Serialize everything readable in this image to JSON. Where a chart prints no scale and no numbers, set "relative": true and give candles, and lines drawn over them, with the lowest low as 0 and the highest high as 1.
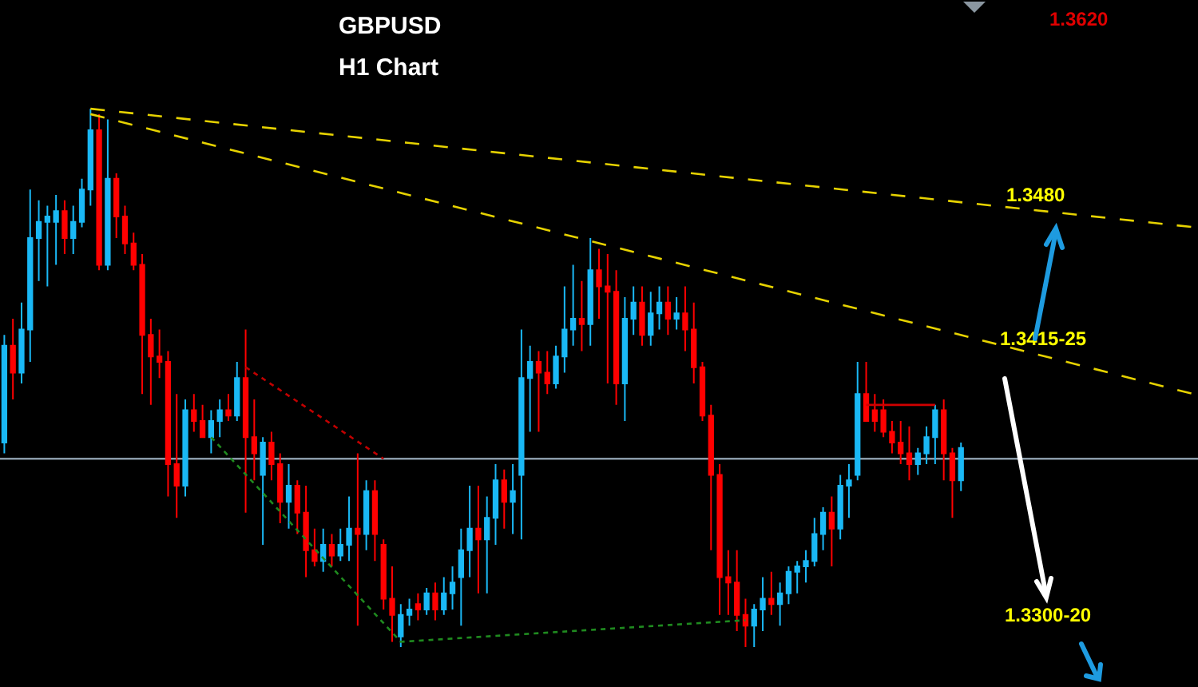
{
  "chart_data": {
    "type": "candlestick",
    "relative": true,
    "title": "GBPUSD",
    "subtitle": "H1 Chart",
    "categories": [
      null,
      null,
      null,
      null,
      null,
      null,
      null,
      null,
      null,
      null,
      null,
      null,
      null,
      null,
      null,
      null,
      null,
      null,
      null,
      null,
      null,
      null,
      null,
      null,
      null,
      null,
      null,
      null,
      null,
      null,
      null,
      null,
      null,
      null,
      null,
      null,
      null,
      null,
      null,
      null,
      null,
      null,
      null,
      null,
      null,
      null,
      null,
      null,
      null,
      null,
      null,
      null,
      null,
      null,
      null,
      null,
      null,
      null,
      null,
      null,
      null,
      null,
      null,
      null,
      null,
      null,
      null,
      null,
      null,
      null,
      null,
      null,
      null,
      null,
      null,
      null,
      null,
      null,
      null,
      null,
      null,
      null,
      null,
      null,
      null,
      null,
      null,
      null,
      null,
      null,
      null,
      null,
      null,
      null,
      null,
      null,
      null,
      null,
      null,
      null,
      null,
      null,
      null,
      null,
      null,
      null,
      null,
      null,
      null,
      null,
      null,
      null,
      null,
      null,
      null,
      null,
      null,
      null,
      null,
      null,
      null,
      null,
      null,
      null,
      null,
      null,
      null,
      null,
      null,
      null,
      null,
      null,
      null,
      null,
      null,
      null,
      null,
      null,
      null
    ],
    "ohlc": [
      [
        0.38,
        0.58,
        0.36,
        0.56
      ],
      [
        0.56,
        0.61,
        0.46,
        0.51
      ],
      [
        0.51,
        0.64,
        0.49,
        0.59
      ],
      [
        0.59,
        0.85,
        0.53,
        0.76
      ],
      [
        0.76,
        0.83,
        0.68,
        0.79
      ],
      [
        0.79,
        0.82,
        0.67,
        0.8
      ],
      [
        0.79,
        0.84,
        0.71,
        0.81
      ],
      [
        0.81,
        0.83,
        0.73,
        0.76
      ],
      [
        0.76,
        0.82,
        0.73,
        0.79
      ],
      [
        0.79,
        0.87,
        0.78,
        0.85
      ],
      [
        0.85,
        1,
        0.82,
        0.96
      ],
      [
        0.96,
        0.99,
        0.7,
        0.71
      ],
      [
        0.71,
        0.98,
        0.7,
        0.87
      ],
      [
        0.87,
        0.88,
        0.76,
        0.8
      ],
      [
        0.8,
        0.82,
        0.73,
        0.75
      ],
      [
        0.75,
        0.77,
        0.7,
        0.71
      ],
      [
        0.71,
        0.73,
        0.47,
        0.58
      ],
      [
        0.58,
        0.61,
        0.45,
        0.54
      ],
      [
        0.54,
        0.59,
        0.5,
        0.53
      ],
      [
        0.53,
        0.55,
        0.28,
        0.34
      ],
      [
        0.34,
        0.47,
        0.24,
        0.3
      ],
      [
        0.3,
        0.46,
        0.28,
        0.44
      ],
      [
        0.44,
        0.47,
        0.4,
        0.42
      ],
      [
        0.42,
        0.45,
        0.39,
        0.39
      ],
      [
        0.39,
        0.44,
        0.36,
        0.42
      ],
      [
        0.42,
        0.46,
        0.39,
        0.44
      ],
      [
        0.44,
        0.47,
        0.42,
        0.43
      ],
      [
        0.43,
        0.53,
        0.42,
        0.5
      ],
      [
        0.5,
        0.59,
        0.25,
        0.39
      ],
      [
        0.39,
        0.46,
        0.31,
        0.36
      ],
      [
        0.32,
        0.39,
        0.19,
        0.38
      ],
      [
        0.38,
        0.4,
        0.31,
        0.34
      ],
      [
        0.34,
        0.36,
        0.23,
        0.27
      ],
      [
        0.27,
        0.34,
        0.22,
        0.3
      ],
      [
        0.3,
        0.31,
        0.21,
        0.25
      ],
      [
        0.25,
        0.3,
        0.13,
        0.18
      ],
      [
        0.18,
        0.22,
        0.15,
        0.16
      ],
      [
        0.16,
        0.22,
        0.14,
        0.19
      ],
      [
        0.19,
        0.21,
        0.15,
        0.17
      ],
      [
        0.17,
        0.22,
        0.16,
        0.19
      ],
      [
        0.19,
        0.28,
        0.16,
        0.22
      ],
      [
        0.22,
        0.36,
        0.04,
        0.21
      ],
      [
        0.21,
        0.31,
        0.18,
        0.29
      ],
      [
        0.29,
        0.31,
        0.16,
        0.21
      ],
      [
        0.19,
        0.2,
        0.07,
        0.09
      ],
      [
        0.09,
        0.15,
        0.01,
        0.06
      ],
      [
        0.02,
        0.08,
        0.0,
        0.06
      ],
      [
        0.06,
        0.09,
        0.04,
        0.07
      ],
      [
        0.08,
        0.1,
        0.05,
        0.07
      ],
      [
        0.07,
        0.11,
        0.06,
        0.1
      ],
      [
        0.1,
        0.12,
        0.05,
        0.07
      ],
      [
        0.07,
        0.13,
        0.06,
        0.1
      ],
      [
        0.1,
        0.15,
        0.07,
        0.12
      ],
      [
        0.13,
        0.22,
        0.04,
        0.18
      ],
      [
        0.18,
        0.3,
        0.13,
        0.22
      ],
      [
        0.22,
        0.3,
        0.1,
        0.2
      ],
      [
        0.2,
        0.28,
        0.1,
        0.24
      ],
      [
        0.24,
        0.34,
        0.19,
        0.31
      ],
      [
        0.31,
        0.33,
        0.22,
        0.27
      ],
      [
        0.27,
        0.34,
        0.21,
        0.29
      ],
      [
        0.32,
        0.59,
        0.2,
        0.5
      ],
      [
        0.5,
        0.56,
        0.4,
        0.53
      ],
      [
        0.53,
        0.55,
        0.4,
        0.51
      ],
      [
        0.51,
        0.55,
        0.47,
        0.49
      ],
      [
        0.49,
        0.56,
        0.48,
        0.54
      ],
      [
        0.54,
        0.67,
        0.51,
        0.59
      ],
      [
        0.59,
        0.71,
        0.56,
        0.61
      ],
      [
        0.61,
        0.68,
        0.55,
        0.6
      ],
      [
        0.6,
        0.76,
        0.56,
        0.7
      ],
      [
        0.7,
        0.74,
        0.61,
        0.67
      ],
      [
        0.67,
        0.73,
        0.49,
        0.66
      ],
      [
        0.66,
        0.7,
        0.45,
        0.49
      ],
      [
        0.49,
        0.65,
        0.42,
        0.61
      ],
      [
        0.61,
        0.67,
        0.58,
        0.64
      ],
      [
        0.64,
        0.67,
        0.56,
        0.58
      ],
      [
        0.58,
        0.66,
        0.56,
        0.62
      ],
      [
        0.62,
        0.67,
        0.59,
        0.64
      ],
      [
        0.64,
        0.67,
        0.58,
        0.61
      ],
      [
        0.61,
        0.65,
        0.59,
        0.62
      ],
      [
        0.62,
        0.67,
        0.55,
        0.59
      ],
      [
        0.59,
        0.64,
        0.49,
        0.52
      ],
      [
        0.52,
        0.53,
        0.42,
        0.43
      ],
      [
        0.43,
        0.45,
        0.18,
        0.32
      ],
      [
        0.32,
        0.34,
        0.06,
        0.13
      ],
      [
        0.13,
        0.18,
        0.06,
        0.12
      ],
      [
        0.12,
        0.18,
        0.03,
        0.06
      ],
      [
        0.06,
        0.09,
        0.0,
        0.04
      ],
      [
        0.04,
        0.08,
        0,
        0.07
      ],
      [
        0.07,
        0.13,
        0.03,
        0.09
      ],
      [
        0.09,
        0.14,
        0.06,
        0.08
      ],
      [
        0.08,
        0.12,
        0.04,
        0.1
      ],
      [
        0.1,
        0.15,
        0.08,
        0.14
      ],
      [
        0.14,
        0.16,
        0.1,
        0.15
      ],
      [
        0.15,
        0.18,
        0.12,
        0.16
      ],
      [
        0.16,
        0.24,
        0.15,
        0.21
      ],
      [
        0.21,
        0.26,
        0.18,
        0.25
      ],
      [
        0.25,
        0.28,
        0.15,
        0.22
      ],
      [
        0.22,
        0.32,
        0.2,
        0.3
      ],
      [
        0.3,
        0.34,
        0.24,
        0.31
      ],
      [
        0.32,
        0.53,
        0.31,
        0.47
      ],
      [
        0.47,
        0.53,
        0.42,
        0.42
      ],
      [
        0.44,
        0.47,
        0.4,
        0.42
      ],
      [
        0.44,
        0.46,
        0.39,
        0.4
      ],
      [
        0.4,
        0.42,
        0.36,
        0.38
      ],
      [
        0.38,
        0.42,
        0.34,
        0.36
      ],
      [
        0.36,
        0.41,
        0.31,
        0.34
      ],
      [
        0.34,
        0.37,
        0.32,
        0.36
      ],
      [
        0.36,
        0.41,
        0.34,
        0.39
      ],
      [
        0.39,
        0.45,
        0.34,
        0.44
      ],
      [
        0.44,
        0.46,
        0.31,
        0.36
      ],
      [
        0.36,
        0.37,
        0.24,
        0.31
      ],
      [
        0.31,
        0.38,
        0.29,
        0.37
      ],
      null,
      null,
      null,
      null,
      null,
      null,
      null,
      null,
      null,
      null,
      null,
      null,
      null,
      null,
      null,
      null,
      null,
      null,
      null,
      null,
      null,
      null,
      null,
      null,
      null,
      null,
      null
    ],
    "colors": [
      "#1ab8f5",
      "#ff0000",
      "#1ab8f5",
      "#1ab8f5",
      "#1ab8f5",
      "#1ab8f5",
      "#1ab8f5",
      "#ff0000",
      "#1ab8f5",
      "#1ab8f5",
      "#1ab8f5",
      "#ff0000",
      "#1ab8f5",
      "#ff0000",
      "#ff0000",
      "#ff0000",
      "#ff0000",
      "#ff0000",
      "#ff0000",
      "#ff0000",
      "#ff0000",
      "#1ab8f5",
      "#ff0000",
      "#ff0000",
      "#1ab8f5",
      "#1ab8f5",
      "#ff0000",
      "#1ab8f5",
      "#ff0000",
      "#ff0000",
      "#1ab8f5",
      "#ff0000",
      "#ff0000",
      "#1ab8f5",
      "#ff0000",
      "#ff0000",
      "#ff0000",
      "#1ab8f5",
      "#ff0000",
      "#1ab8f5",
      "#1ab8f5",
      "#ff0000",
      "#1ab8f5",
      "#ff0000",
      "#ff0000",
      "#ff0000",
      "#1ab8f5",
      "#1ab8f5",
      "#ff0000",
      "#1ab8f5",
      "#ff0000",
      "#1ab8f5",
      "#1ab8f5",
      "#1ab8f5",
      "#1ab8f5",
      "#ff0000",
      "#1ab8f5",
      "#1ab8f5",
      "#ff0000",
      "#1ab8f5",
      "#1ab8f5",
      "#1ab8f5",
      "#ff0000",
      "#ff0000",
      "#1ab8f5",
      "#1ab8f5",
      "#1ab8f5",
      "#ff0000",
      "#1ab8f5",
      "#ff0000",
      "#ff0000",
      "#ff0000",
      "#1ab8f5",
      "#1ab8f5",
      "#ff0000",
      "#1ab8f5",
      "#1ab8f5",
      "#ff0000",
      "#1ab8f5",
      "#ff0000",
      "#ff0000",
      "#ff0000",
      "#ff0000",
      "#ff0000",
      "#ff0000",
      "#ff0000",
      "#ff0000",
      "#1ab8f5",
      "#1ab8f5",
      "#ff0000",
      "#1ab8f5",
      "#1ab8f5",
      "#1ab8f5",
      "#1ab8f5",
      "#1ab8f5",
      "#1ab8f5",
      "#ff0000",
      "#1ab8f5",
      "#1ab8f5",
      "#1ab8f5",
      "#ff0000",
      "#ff0000",
      "#ff0000",
      "#ff0000",
      "#ff0000",
      "#ff0000",
      "#1ab8f5",
      "#1ab8f5",
      "#1ab8f5",
      "#ff0000",
      "#ff0000",
      "#1ab8f5",
      null,
      null,
      null,
      null,
      null,
      null,
      null,
      null,
      null,
      null,
      null,
      null,
      null,
      null,
      null,
      null,
      null,
      null,
      null,
      null,
      null,
      null,
      null,
      null,
      null,
      null,
      null
    ],
    "series": [
      {
        "type": "line",
        "color": "#e6d200",
        "line_style": "dashed",
        "values": [
          null,
          null,
          null,
          null,
          null,
          null,
          null,
          null,
          null,
          null,
          1,
          null,
          null,
          null,
          null,
          null,
          null,
          null,
          null,
          null,
          null,
          null,
          null,
          null,
          null,
          null,
          null,
          null,
          null,
          null,
          null,
          null,
          null,
          null,
          null,
          null,
          null,
          null,
          null,
          null,
          null,
          null,
          null,
          null,
          null,
          null,
          null,
          null,
          null,
          null,
          null,
          null,
          null,
          null,
          null,
          null,
          null,
          null,
          null,
          null,
          null,
          null,
          null,
          null,
          null,
          null,
          null,
          null,
          null,
          null,
          null,
          null,
          null,
          null,
          null,
          null,
          null,
          null,
          null,
          null,
          null,
          null,
          null,
          null,
          null,
          null,
          null,
          null,
          null,
          null,
          null,
          null,
          null,
          null,
          null,
          null,
          null,
          null,
          null,
          null,
          null,
          null,
          null,
          null,
          null,
          null,
          null,
          null,
          null,
          null,
          null,
          null,
          null,
          null,
          null,
          null,
          null,
          null,
          null,
          null,
          null,
          null,
          null,
          null,
          null,
          null,
          null,
          null,
          null,
          null,
          null,
          null,
          null,
          null,
          null,
          null,
          null,
          null,
          0.78
        ]
      },
      {
        "type": "line",
        "color": "#e6d200",
        "line_style": "dashed",
        "values": [
          null,
          null,
          null,
          null,
          null,
          null,
          null,
          null,
          null,
          null,
          0.99,
          null,
          null,
          null,
          null,
          null,
          null,
          null,
          null,
          null,
          null,
          null,
          null,
          null,
          null,
          null,
          null,
          null,
          null,
          null,
          null,
          null,
          null,
          null,
          null,
          null,
          null,
          null,
          null,
          null,
          null,
          null,
          null,
          null,
          null,
          null,
          null,
          null,
          null,
          null,
          null,
          null,
          null,
          null,
          null,
          null,
          null,
          null,
          null,
          null,
          null,
          null,
          null,
          null,
          null,
          null,
          null,
          null,
          null,
          null,
          null,
          null,
          null,
          null,
          null,
          null,
          null,
          null,
          null,
          null,
          null,
          null,
          null,
          null,
          null,
          null,
          null,
          null,
          null,
          null,
          null,
          null,
          null,
          null,
          null,
          null,
          null,
          null,
          null,
          null,
          null,
          null,
          null,
          null,
          null,
          null,
          null,
          null,
          null,
          null,
          null,
          null,
          null,
          null,
          null,
          null,
          null,
          null,
          null,
          null,
          null,
          null,
          null,
          null,
          null,
          null,
          null,
          null,
          null,
          null,
          null,
          null,
          null,
          null,
          null,
          null,
          null,
          null,
          0.47
        ]
      },
      {
        "type": "line",
        "color": "#c00000",
        "line_style": "dotted",
        "values": [
          null,
          null,
          null,
          null,
          null,
          null,
          null,
          null,
          null,
          null,
          null,
          null,
          null,
          null,
          null,
          null,
          null,
          null,
          null,
          null,
          null,
          null,
          null,
          null,
          null,
          null,
          null,
          null,
          0.52,
          null,
          null,
          null,
          null,
          null,
          null,
          null,
          null,
          null,
          null,
          null,
          null,
          null,
          null,
          null,
          0.35,
          null,
          null,
          null,
          null,
          null,
          null,
          null,
          null,
          null,
          null,
          null,
          null,
          null,
          null,
          null,
          null,
          null,
          null,
          null,
          null,
          null,
          null,
          null,
          null,
          null,
          null,
          null,
          null,
          null,
          null,
          null,
          null,
          null,
          null,
          null,
          null,
          null,
          null,
          null,
          null,
          null,
          null,
          null,
          null,
          null,
          null,
          null,
          null,
          null,
          null,
          null,
          null,
          null,
          null,
          null,
          null,
          null,
          null,
          null,
          null,
          null,
          null,
          null,
          null,
          null,
          null,
          null,
          null,
          null,
          null,
          null,
          null,
          null,
          null,
          null,
          null,
          null,
          null,
          null,
          null,
          null,
          null,
          null,
          null,
          null,
          null,
          null,
          null,
          null,
          null,
          null,
          null,
          null,
          null
        ]
      },
      {
        "type": "line",
        "color": "#1f8a1f",
        "line_style": "dotted",
        "values": [
          null,
          null,
          null,
          null,
          null,
          null,
          null,
          null,
          null,
          null,
          null,
          null,
          null,
          null,
          null,
          null,
          null,
          null,
          null,
          null,
          null,
          null,
          null,
          null,
          0.39,
          null,
          null,
          null,
          null,
          null,
          null,
          null,
          null,
          null,
          null,
          null,
          null,
          null,
          null,
          null,
          null,
          null,
          null,
          null,
          null,
          null,
          0.01,
          null,
          null,
          null,
          null,
          null,
          null,
          null,
          null,
          null,
          null,
          null,
          null,
          null,
          null,
          null,
          null,
          null,
          null,
          null,
          null,
          null,
          null,
          null,
          null,
          null,
          null,
          null,
          null,
          null,
          null,
          null,
          null,
          null,
          null,
          null,
          null,
          null,
          null,
          null,
          0.05,
          null,
          null,
          null,
          null,
          null,
          null,
          null,
          null,
          null,
          null,
          null,
          null,
          null,
          null,
          null,
          null,
          null,
          null,
          null,
          null,
          null,
          null,
          null,
          null,
          null,
          null,
          null,
          null,
          null,
          null,
          null,
          null,
          null,
          null,
          null,
          null,
          null,
          null,
          null,
          null,
          null,
          null,
          null,
          null,
          null,
          null,
          null,
          null,
          null,
          null,
          null,
          null
        ]
      },
      {
        "type": "line",
        "color": "#d00000",
        "line_style": "solid",
        "values": [
          null,
          null,
          null,
          null,
          null,
          null,
          null,
          null,
          null,
          null,
          null,
          null,
          null,
          null,
          null,
          null,
          null,
          null,
          null,
          null,
          null,
          null,
          null,
          null,
          null,
          null,
          null,
          null,
          null,
          null,
          null,
          null,
          null,
          null,
          null,
          null,
          null,
          null,
          null,
          null,
          null,
          null,
          null,
          null,
          null,
          null,
          null,
          null,
          null,
          null,
          null,
          null,
          null,
          null,
          null,
          null,
          null,
          null,
          null,
          null,
          null,
          null,
          null,
          null,
          null,
          null,
          null,
          null,
          null,
          null,
          null,
          null,
          null,
          null,
          null,
          null,
          null,
          null,
          null,
          null,
          null,
          null,
          null,
          null,
          null,
          null,
          null,
          null,
          null,
          null,
          null,
          null,
          null,
          null,
          null,
          null,
          null,
          null,
          null,
          null,
          0.45,
          null,
          null,
          null,
          null,
          null,
          null,
          null,
          0.45,
          null,
          null,
          null,
          null,
          null,
          null,
          null,
          null,
          null,
          null,
          null,
          null,
          null,
          null,
          null,
          null,
          null,
          null,
          null,
          null,
          null,
          null,
          null,
          null,
          null,
          null,
          null,
          null,
          null,
          null
        ]
      }
    ],
    "ref_lines": [
      {
        "axis": "y",
        "value": 0.35,
        "color": "#8a9aa8"
      }
    ],
    "annotations": [
      "1.3620",
      "1.3480",
      "1.3415-25",
      "1.3300-20"
    ]
  }
}
